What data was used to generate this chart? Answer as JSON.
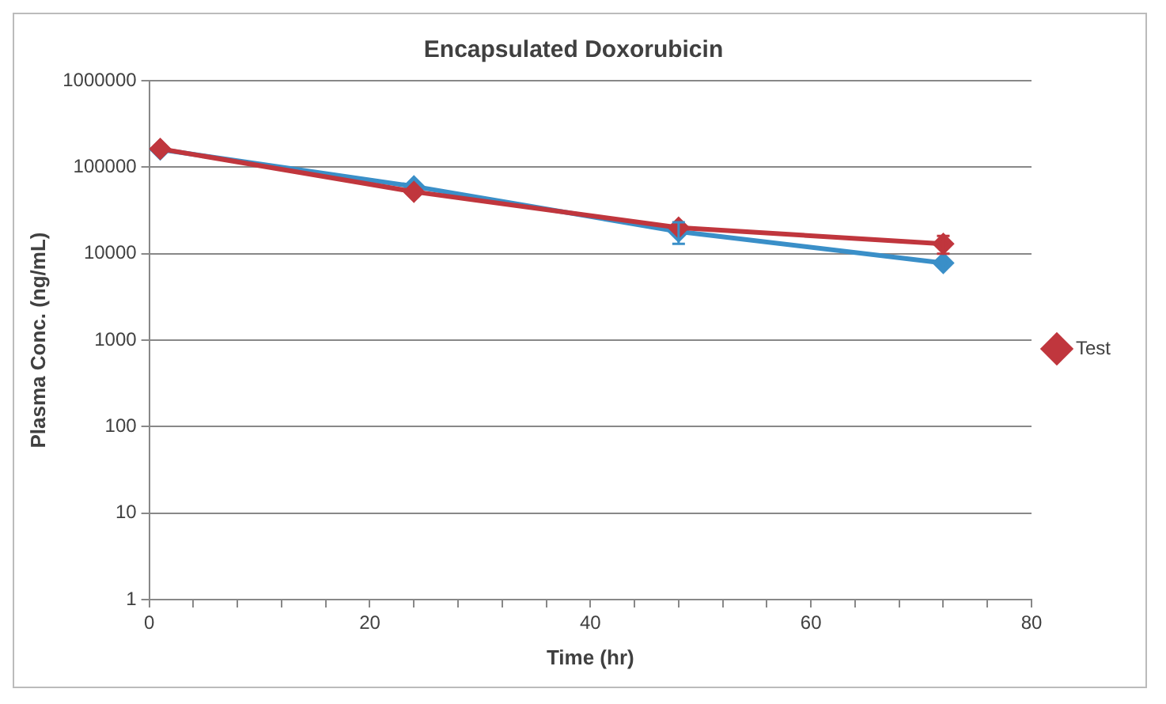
{
  "chart_data": {
    "type": "line",
    "title": "Encapsulated Doxorubicin",
    "xlabel": "Time (hr)",
    "ylabel": "Plasma Conc. (ng/mL)",
    "x": [
      1,
      24,
      48,
      72
    ],
    "series": [
      {
        "color": "#3a8fc8",
        "values": [
          160000,
          60000,
          18000,
          7800
        ],
        "errors": [
          null,
          null,
          5000,
          null
        ]
      },
      {
        "name": "Test",
        "color": "#c0363d",
        "values": [
          163000,
          52000,
          20000,
          13000
        ],
        "errors": [
          null,
          null,
          null,
          3000
        ]
      }
    ],
    "log": "y",
    "ylim": [
      1,
      1000000
    ],
    "yticks": [
      1,
      10,
      100,
      1000,
      10000,
      100000,
      1000000
    ],
    "xlim": [
      0,
      80
    ],
    "xticks": [
      0,
      {
        "value": 4,
        "label": null
      },
      {
        "value": 8,
        "label": null
      },
      {
        "value": 12,
        "label": null
      },
      {
        "value": 16,
        "label": null
      },
      20,
      {
        "value": 24,
        "label": null
      },
      {
        "value": 28,
        "label": null
      },
      {
        "value": 32,
        "label": null
      },
      {
        "value": 36,
        "label": null
      },
      40,
      {
        "value": 44,
        "label": null
      },
      {
        "value": 48,
        "label": null
      },
      {
        "value": 52,
        "label": null
      },
      {
        "value": 56,
        "label": null
      },
      60,
      {
        "value": 64,
        "label": null
      },
      {
        "value": 68,
        "label": null
      },
      {
        "value": 72,
        "label": null
      },
      {
        "value": 76,
        "label": null
      },
      80
    ],
    "grid": "y",
    "legend": "right",
    "marker": "diamond",
    "line_style": "solid"
  }
}
